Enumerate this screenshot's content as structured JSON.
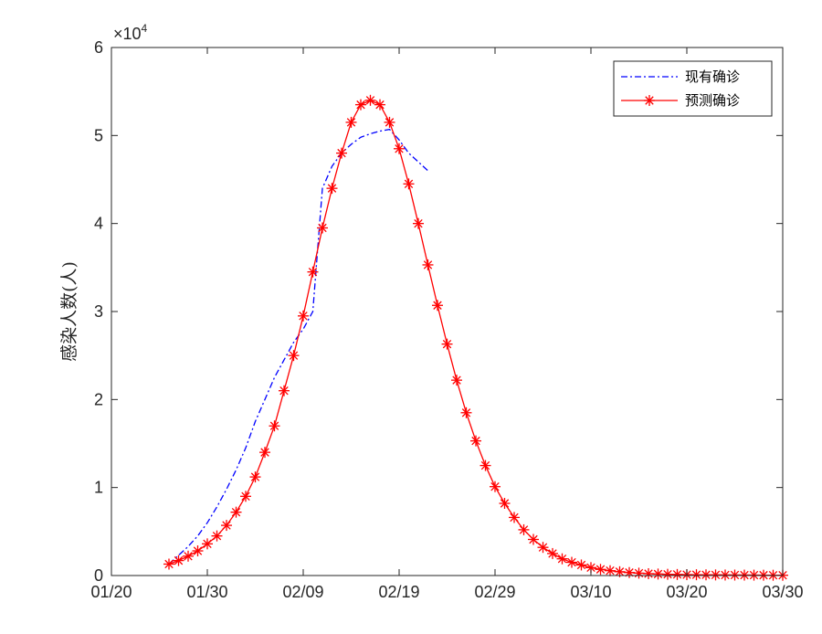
{
  "chart_data": {
    "type": "line",
    "title": "",
    "xlabel": "",
    "ylabel": "感染人数(人)",
    "y_exponent_label": "×10",
    "y_exponent_power": "4",
    "x_tick_labels": [
      "01/20",
      "01/30",
      "02/09",
      "02/19",
      "02/29",
      "03/10",
      "03/20",
      "03/30"
    ],
    "x_tick_days": [
      0,
      10,
      20,
      30,
      40,
      50,
      60,
      70
    ],
    "x_range_days": [
      0,
      70
    ],
    "x_reference_date": "01/20",
    "y_tick_labels": [
      "0",
      "1",
      "2",
      "3",
      "4",
      "5",
      "6"
    ],
    "y_ticks": [
      0,
      10000,
      20000,
      30000,
      40000,
      50000,
      60000
    ],
    "ylim": [
      0,
      60000
    ],
    "grid": false,
    "legend_position": "top-right",
    "series": [
      {
        "name": "现有确诊",
        "color": "#0000ff",
        "style": "dash-dot",
        "marker": "none",
        "x": [
          6,
          7,
          8,
          9,
          10,
          11,
          12,
          13,
          14,
          15,
          16,
          17,
          18,
          19,
          20,
          21,
          22,
          23,
          24,
          25,
          26,
          27,
          28,
          29,
          30,
          31,
          32,
          33
        ],
        "y": [
          1300,
          2300,
          3300,
          4500,
          6000,
          7800,
          9800,
          12000,
          14500,
          17500,
          20000,
          22500,
          24500,
          26500,
          28000,
          30000,
          44000,
          46500,
          48000,
          49000,
          49800,
          50200,
          50500,
          50700,
          49500,
          48000,
          47000,
          46000
        ]
      },
      {
        "name": "预测确诊",
        "color": "#ff0000",
        "style": "solid",
        "marker": "asterisk",
        "x": [
          6,
          7,
          8,
          9,
          10,
          11,
          12,
          13,
          14,
          15,
          16,
          17,
          18,
          19,
          20,
          21,
          22,
          23,
          24,
          25,
          26,
          27,
          28,
          29,
          30,
          31,
          32,
          33,
          34,
          35,
          36,
          37,
          38,
          39,
          40,
          41,
          42,
          43,
          44,
          45,
          46,
          47,
          48,
          49,
          50,
          51,
          52,
          53,
          54,
          55,
          56,
          57,
          58,
          59,
          60,
          61,
          62,
          63,
          64,
          65,
          66,
          67,
          68,
          69,
          70
        ],
        "y": [
          1300,
          1700,
          2200,
          2800,
          3600,
          4500,
          5700,
          7200,
          9000,
          11200,
          14000,
          17000,
          21000,
          25000,
          29500,
          34500,
          39500,
          44000,
          48000,
          51500,
          53500,
          54000,
          53500,
          51500,
          48500,
          44500,
          40000,
          35300,
          30700,
          26300,
          22200,
          18500,
          15300,
          12500,
          10100,
          8200,
          6600,
          5200,
          4100,
          3200,
          2500,
          1900,
          1500,
          1200,
          900,
          700,
          550,
          430,
          340,
          270,
          210,
          170,
          140,
          120,
          100,
          90,
          80,
          70,
          60,
          55,
          50,
          45,
          40,
          35,
          30
        ]
      }
    ]
  }
}
